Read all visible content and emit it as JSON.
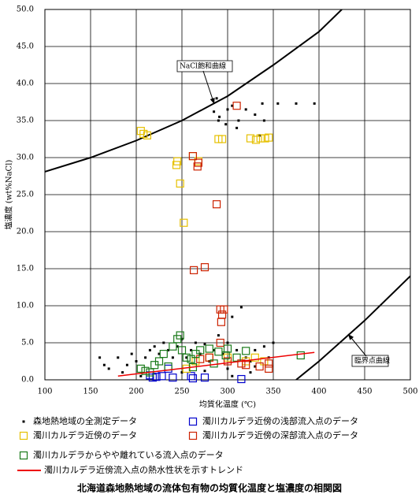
{
  "chart_data": {
    "type": "scatter",
    "title": "北海道森地熱地域の流体包有物の均質化温度と塩濃度の相関図",
    "x_label": "均質化温度 (℃)",
    "y_label": "塩濃度 (wt%NaCl)",
    "xlim": [
      100,
      500
    ],
    "ylim": [
      0,
      50
    ],
    "xticks": [
      100,
      150,
      200,
      250,
      300,
      350,
      400,
      450,
      500
    ],
    "yticks": [
      {
        "value": 0,
        "label": "0.0"
      },
      {
        "value": 5,
        "label": "5.0"
      },
      {
        "value": 10,
        "label": "10.0"
      },
      {
        "value": 15,
        "label": "15.0"
      },
      {
        "value": 20,
        "label": "20.0"
      },
      {
        "value": 25,
        "label": "25.0"
      },
      {
        "value": 30,
        "label": "30.0"
      },
      {
        "value": 35,
        "label": "35.0"
      },
      {
        "value": 40,
        "label": "40.0"
      },
      {
        "value": 45,
        "label": "45.0"
      },
      {
        "value": 50,
        "label": "50.0"
      }
    ],
    "grid": true,
    "series": [
      {
        "name": "森地熱地域の全測定データ",
        "color": "#000000",
        "marker": "dot",
        "x": [
          160,
          165,
          180,
          185,
          190,
          195,
          200,
          210,
          215,
          220,
          225,
          230,
          235,
          240,
          245,
          250,
          255,
          260,
          265,
          270,
          275,
          280,
          285,
          290,
          295,
          300,
          305,
          310,
          315,
          320,
          325,
          330,
          340,
          350,
          170,
          205,
          250,
          275,
          300,
          330,
          345,
          291,
          290,
          298,
          300,
          305,
          312,
          320,
          330,
          338,
          340,
          355,
          375,
          395,
          285,
          288,
          310,
          335,
          325,
          305
        ],
        "values": [
          3,
          2,
          3,
          1,
          2,
          3.5,
          2.5,
          3,
          4,
          4.5,
          3.5,
          5,
          4,
          3,
          4.5,
          5.5,
          3,
          4,
          5,
          3.5,
          4.8,
          2.5,
          4,
          6,
          3.5,
          5,
          8.5,
          4,
          9.8,
          3,
          2.5,
          4,
          4.5,
          5,
          1.5,
          0.5,
          1,
          1.2,
          1.5,
          1.8,
          3,
          35.5,
          35,
          34.5,
          36.5,
          37,
          35,
          36.5,
          35.8,
          37.3,
          35,
          37.3,
          37.3,
          37.3,
          36.2,
          38,
          34,
          33,
          1,
          0.5
        ]
      },
      {
        "name": "濁川カルデラ近傍の浅部流入点のデータ",
        "color": "#0000cc",
        "marker": "square",
        "x": [
          218,
          222,
          215,
          228,
          240,
          260,
          262,
          275,
          315,
          235
        ],
        "values": [
          0.3,
          0.4,
          0.6,
          0.5,
          0.3,
          0.5,
          0.2,
          0.3,
          0.1,
          1.5
        ]
      },
      {
        "name": "濁川カルデラ近傍のデータ",
        "color": "#e6c000",
        "marker": "square",
        "x": [
          205,
          208,
          212,
          245,
          244,
          248,
          252,
          290,
          294,
          325,
          331,
          336,
          341,
          345,
          262,
          268,
          255,
          265,
          280,
          300,
          320,
          340,
          330
        ],
        "values": [
          33.6,
          33.2,
          33.0,
          29.5,
          29.0,
          26.5,
          21.2,
          32.5,
          32.5,
          32.6,
          32.4,
          32.6,
          32.6,
          32.7,
          30.2,
          29.5,
          1.5,
          2.5,
          3,
          3,
          2.5,
          2.5,
          3
        ]
      },
      {
        "name": "濁川カルデラ近傍の深部流入点のデータ",
        "color": "#cc2200",
        "marker": "square",
        "x": [
          262,
          268,
          267,
          310,
          288,
          263,
          275,
          292,
          296,
          294,
          293,
          292,
          315,
          320,
          335,
          345,
          345,
          270,
          280,
          300
        ],
        "values": [
          30.2,
          29.3,
          28.8,
          37.0,
          23.7,
          14.8,
          15.2,
          9.5,
          9.5,
          8.8,
          7.8,
          5,
          2.2,
          2,
          1.8,
          1.5,
          2.2,
          2.8,
          3,
          2.5
        ]
      },
      {
        "name": "濁川カルデラからやや離れている流入点のデータ",
        "color": "#1a7a1a",
        "marker": "square",
        "x": [
          205,
          210,
          220,
          225,
          230,
          240,
          245,
          248,
          250,
          255,
          260,
          265,
          270,
          280,
          290,
          300,
          310,
          320,
          380,
          235,
          215,
          285,
          298,
          262
        ],
        "values": [
          1.5,
          1.2,
          2.0,
          2.5,
          3.5,
          4.5,
          5.5,
          6.0,
          4.0,
          3.0,
          2.8,
          3.5,
          4.0,
          4.2,
          3.8,
          4.2,
          3.0,
          3.9,
          3.3,
          1.8,
          1.0,
          2.2,
          3.3,
          1.7
        ]
      },
      {
        "name": "濁川カルデラ近傍流入点の熱水性状を示すトレンド",
        "color": "#ee0000",
        "marker": "line",
        "x": [
          180,
          395
        ],
        "values": [
          0.5,
          3.7
        ]
      }
    ],
    "curves": [
      {
        "name": "NaCl飽和曲線",
        "color": "#000000",
        "x": [
          100,
          150,
          200,
          250,
          300,
          350,
          400,
          425
        ],
        "values": [
          28.1,
          30.0,
          32.3,
          35.0,
          38.3,
          42.5,
          47.0,
          50.0
        ]
      },
      {
        "name": "臨界点曲線",
        "color": "#000000",
        "x": [
          375,
          400,
          450,
          500
        ],
        "values": [
          0,
          2.5,
          8.0,
          14.0
        ]
      }
    ]
  }
}
